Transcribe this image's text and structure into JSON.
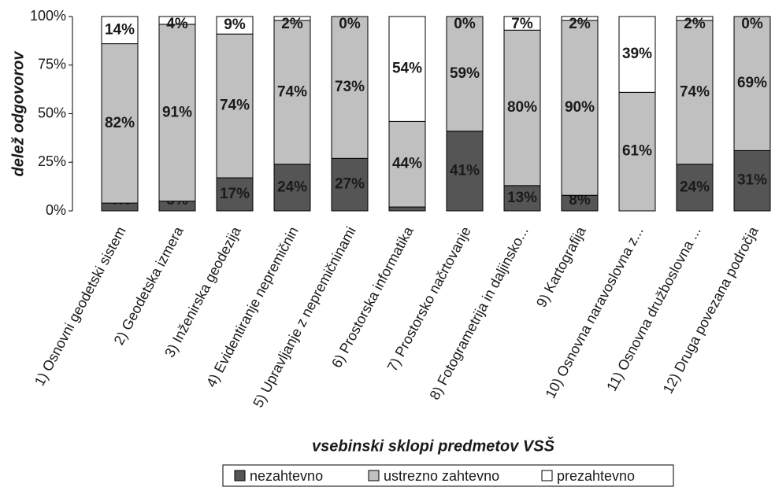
{
  "chart_data": {
    "type": "stacked-bar",
    "x_label": "vsebinski sklopi predmetov VSŠ",
    "y_label": "delež odgovorov",
    "categories": [
      "1) Osnovni geodetski sistem",
      "2) Geodetska izmera",
      "3) Inženirska geodezija",
      "4) Evidentiranje nepremičnin",
      "5) Upravljanje z nepremičninami",
      "6) Prostorska informatika",
      "7) Prostorsko načrtovanje",
      "8) Fotogrametrija in daljinsko...",
      "9) Kartografija",
      "10) Osnovna naravoslovna z...",
      "11) Osnovna družboslovna ...",
      "12) Druga povezana področja"
    ],
    "series": [
      {
        "name": "nezahtevno",
        "color": "#555555",
        "values": [
          4,
          5,
          17,
          24,
          27,
          2,
          41,
          13,
          8,
          0,
          24,
          31
        ],
        "value_labels": [
          "4%",
          "5%",
          "17%",
          "24%",
          "27%",
          "2%",
          "41%",
          "13%",
          "8%",
          "0%",
          "24%",
          "31%"
        ]
      },
      {
        "name": "ustrezno zahtevno",
        "color": "#c0c0c0",
        "values": [
          82,
          91,
          74,
          74,
          73,
          44,
          59,
          80,
          90,
          61,
          74,
          69
        ],
        "value_labels": [
          "82%",
          "91%",
          "74%",
          "74%",
          "73%",
          "44%",
          "59%",
          "80%",
          "90%",
          "61%",
          "74%",
          "69%"
        ]
      },
      {
        "name": "prezahtevno",
        "color": "#ffffff",
        "values": [
          14,
          4,
          9,
          2,
          0,
          54,
          0,
          7,
          2,
          39,
          2,
          0
        ],
        "value_labels": [
          "14%",
          "4%",
          "9%",
          "2%",
          "0%",
          "54%",
          "0%",
          "7%",
          "2%",
          "39%",
          "2%",
          "0%"
        ]
      }
    ],
    "ylim": [
      0,
      100
    ],
    "yticks": [
      {
        "value": 0,
        "label": "0%"
      },
      {
        "value": 25,
        "label": "25%"
      },
      {
        "value": 50,
        "label": "50%"
      },
      {
        "value": 75,
        "label": "75%"
      },
      {
        "value": 100,
        "label": "100%"
      }
    ],
    "legend": "bottom"
  }
}
